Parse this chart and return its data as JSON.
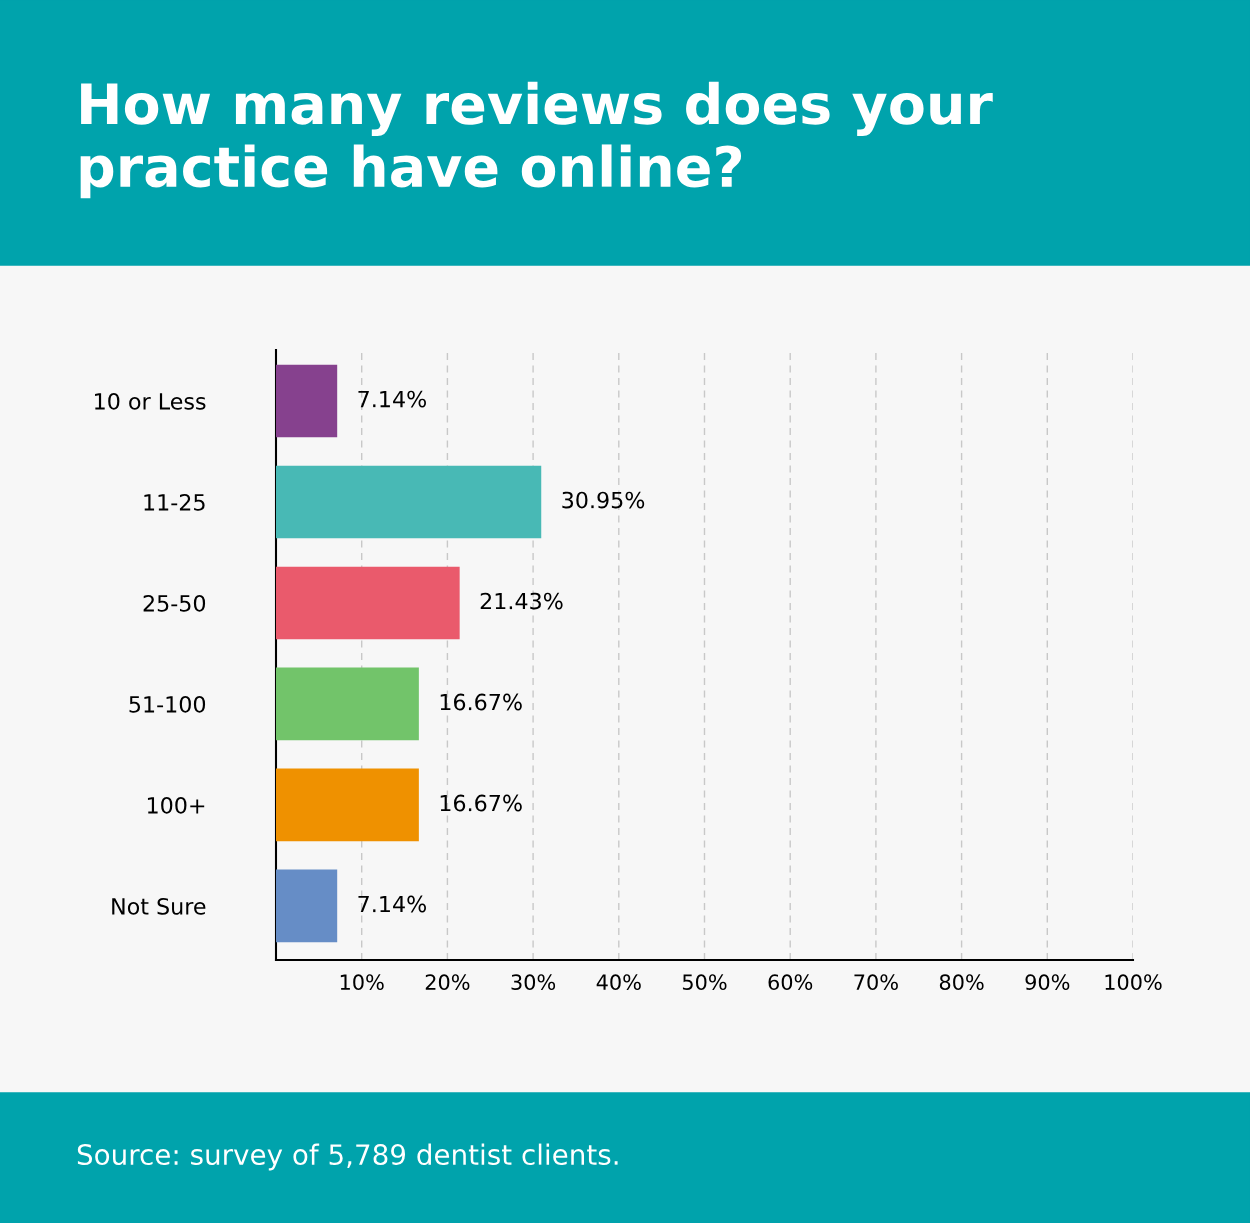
{
  "chart_data": {
    "type": "bar",
    "orientation": "horizontal",
    "title": "How many reviews does your practice have online?",
    "categories": [
      "10 or Less",
      "11-25",
      "25-50",
      "51-100",
      "100+",
      "Not Sure"
    ],
    "values": [
      7.14,
      30.95,
      21.43,
      16.67,
      16.67,
      7.14
    ],
    "colors": [
      "#86418e",
      "#48b9b5",
      "#ea5a6c",
      "#72c46a",
      "#ef9100",
      "#668dc6"
    ],
    "value_labels": [
      "7.14%",
      "30.95%",
      "21.43%",
      "16.67%",
      "16.67%",
      "7.14%"
    ],
    "xlim": [
      0,
      100
    ],
    "xticks": [
      {
        "value": 10,
        "label": "10%"
      },
      {
        "value": 20,
        "label": "20%"
      },
      {
        "value": 30,
        "label": "30%"
      },
      {
        "value": 40,
        "label": "40%"
      },
      {
        "value": 50,
        "label": "50%"
      },
      {
        "value": 60,
        "label": "60%"
      },
      {
        "value": 70,
        "label": "70%"
      },
      {
        "value": 80,
        "label": "80%"
      },
      {
        "value": 90,
        "label": "90%"
      },
      {
        "value": 100,
        "label": "100%"
      }
    ],
    "grid": "x",
    "line_style": "dashed",
    "annotations": [
      "Source: survey of 5,789 dentist clients."
    ]
  }
}
